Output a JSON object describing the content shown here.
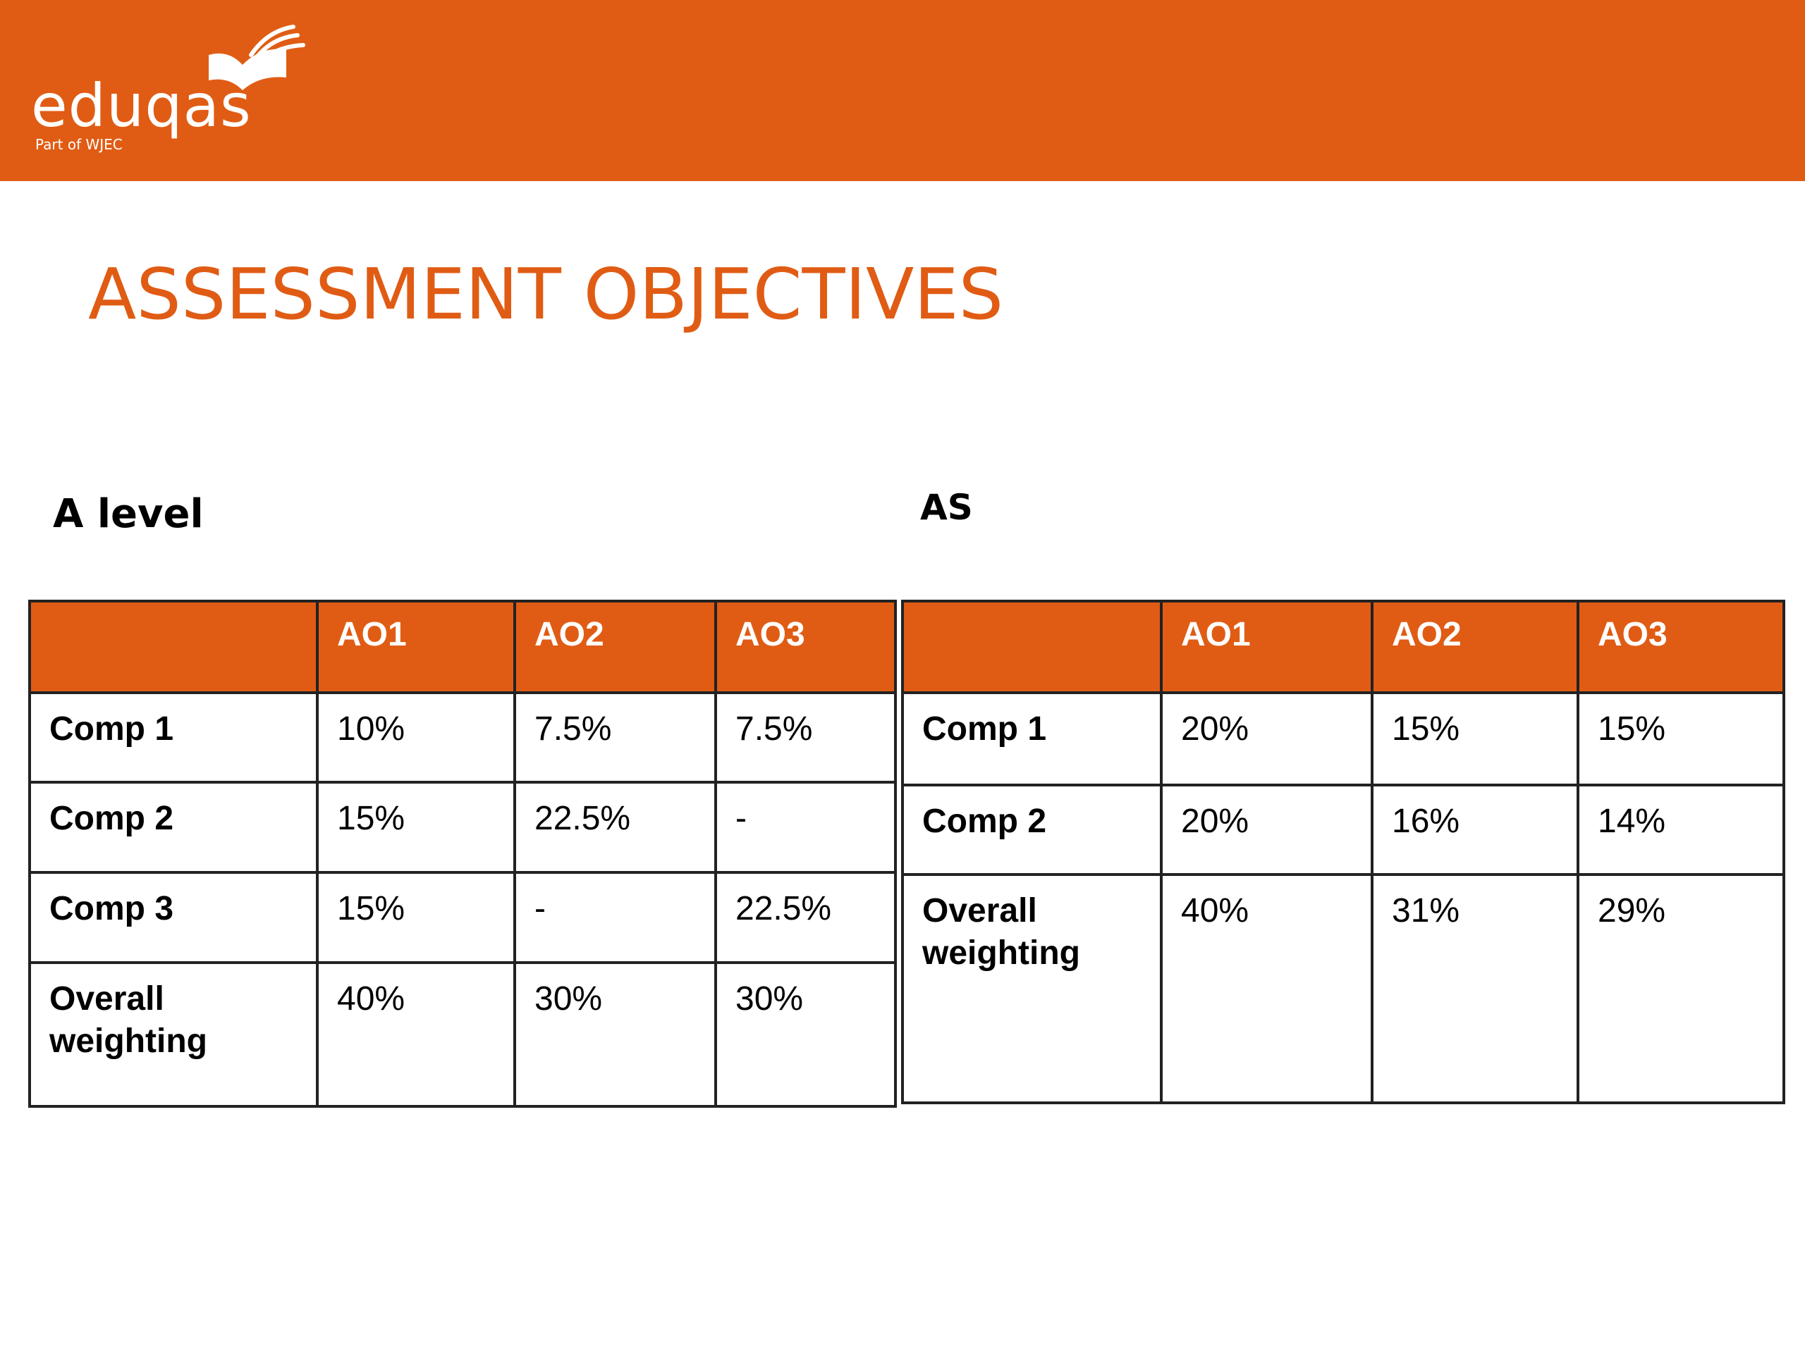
{
  "brand": {
    "name": "eduqas",
    "tagline": "Part of WJEC",
    "color": "#e05c14"
  },
  "slide": {
    "title": "ASSESSMENT OBJECTIVES"
  },
  "a_level": {
    "label": "A level",
    "columns": [
      "",
      "AO1",
      "AO2",
      "AO3"
    ],
    "rows": [
      [
        "Comp 1",
        "10%",
        "7.5%",
        "7.5%"
      ],
      [
        "Comp 2",
        "15%",
        "22.5%",
        "-"
      ],
      [
        "Comp 3",
        "15%",
        "-",
        "22.5%"
      ],
      [
        "Overall weighting",
        "40%",
        "30%",
        "30%"
      ]
    ]
  },
  "as_level": {
    "label": "AS",
    "columns": [
      "",
      "AO1",
      "AO2",
      "AO3"
    ],
    "rows": [
      [
        "Comp 1",
        "20%",
        "15%",
        "15%"
      ],
      [
        "Comp 2",
        "20%",
        "16%",
        "14%"
      ],
      [
        "Overall weighting",
        "40%",
        "31%",
        "29%"
      ]
    ]
  }
}
